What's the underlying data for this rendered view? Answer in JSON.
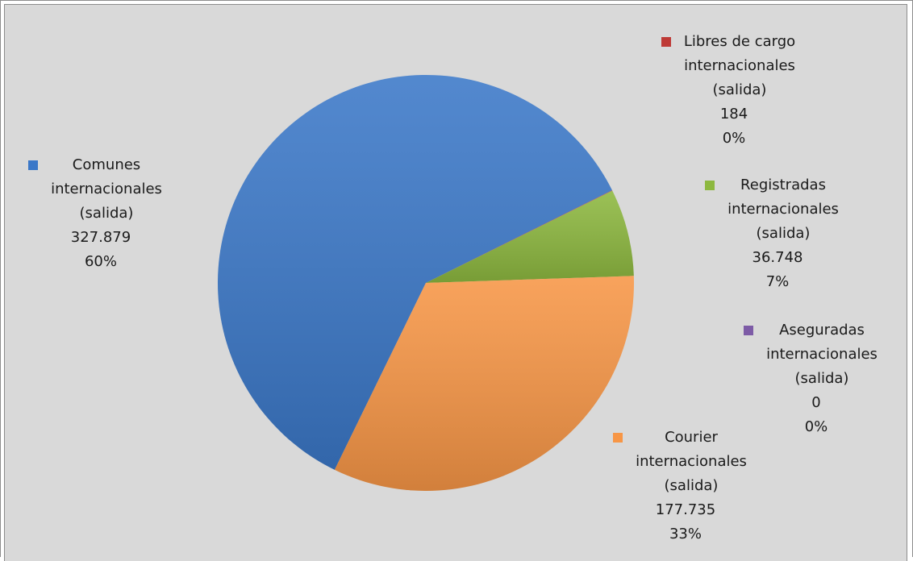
{
  "chart_data": {
    "type": "pie",
    "categories": [
      "Comunes internacionales (salida)",
      "Libres de cargo internacionales (salida)",
      "Registradas internacionales (salida)",
      "Aseguradas internacionales (salida)",
      "Courier internacionales (salida)"
    ],
    "values": [
      327879,
      184,
      36748,
      0,
      177735
    ],
    "value_labels": [
      "327.879",
      "184",
      "36.748",
      "0",
      "177.735"
    ],
    "percent_labels": [
      "60%",
      "0%",
      "7%",
      "0%",
      "33%"
    ],
    "colors": [
      "#3b78c8",
      "#be3a36",
      "#8db83f",
      "#7d5ba6",
      "#f79646"
    ]
  }
}
